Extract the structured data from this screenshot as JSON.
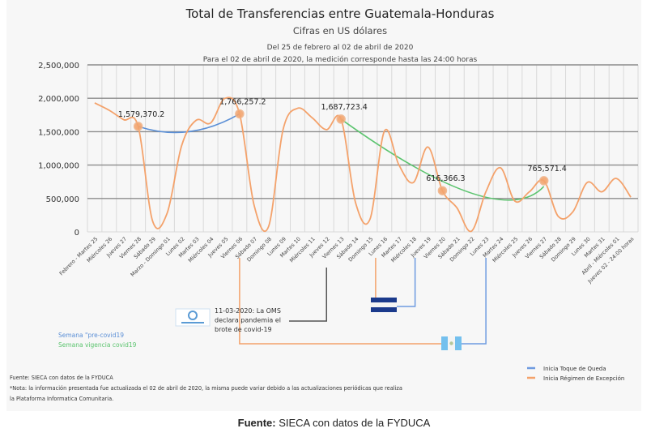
{
  "chart_data": {
    "type": "line",
    "title": "Total de Transferencias entre Guatemala-Honduras",
    "subtitle": "Cifras en US dólares",
    "subtitle2": "Del 25 de febrero al 02 de abril de 2020",
    "subtitle3": "Para el 02 de abril de 2020, la medición corresponde hasta las 24:00 horas",
    "xlabel": "",
    "ylabel": "",
    "ylim": [
      0,
      2500000
    ],
    "yticks": [
      "0",
      "500,000",
      "1,000,000",
      "1,500,000",
      "2,000,000",
      "2,500,000"
    ],
    "ytick_values": [
      0,
      500000,
      1000000,
      1500000,
      2000000,
      2500000
    ],
    "grid": true,
    "categories": [
      "Febrero - Martes 25",
      "Miércoles 26",
      "Jueves 27",
      "Viernes 28",
      "Sábado 29",
      "Marzo - Domingo 01",
      "Lunes 02",
      "Martes 03",
      "Miércoles 04",
      "Jueves 05",
      "Viernes 06",
      "Sábado 07",
      "Domingo 08",
      "Lunes 09",
      "Martes 10",
      "Miércoles 11",
      "Jueves 12",
      "Viernes 13",
      "Sábado 14",
      "Domingo 15",
      "Lunes 16",
      "Martes 17",
      "Miércoles 18",
      "Jueves 19",
      "Viernes 20",
      "Sábado 21",
      "Domingo 22",
      "Lunes 23",
      "Martes 24",
      "Miércoles 25",
      "Jueves 26",
      "Viernes 27",
      "Sábado 28",
      "Domingo 29",
      "Lunes 30",
      "Martes 31",
      "Abril - Miércoles 01",
      "Jueves 02 - 24:00 horas"
    ],
    "series": [
      {
        "color": "#f4a26b",
        "values": [
          1930000,
          1820000,
          1680000,
          1579370.2,
          160000,
          280000,
          1290000,
          1670000,
          1630000,
          2000000,
          1766257.2,
          400000,
          80000,
          1530000,
          1850000,
          1710000,
          1530000,
          1687723.4,
          440000,
          190000,
          1510000,
          1000000,
          740000,
          1270000,
          616366.3,
          360000,
          10000,
          600000,
          960000,
          460000,
          600000,
          765571.4,
          230000,
          300000,
          740000,
          600000,
          800000,
          520000
        ]
      }
    ],
    "markers": [
      {
        "index": 3,
        "label": "1,579,370.2"
      },
      {
        "index": 10,
        "label": "1,766,257.2"
      },
      {
        "index": 17,
        "label": "1,687,723.4"
      },
      {
        "index": 24,
        "label": "616,366.3"
      },
      {
        "index": 31,
        "label": "765,571.4"
      }
    ],
    "trendlines": [
      {
        "name": "Semana \"pre-covid19",
        "color": "#5b8fd6",
        "x_index": [
          3,
          6.5,
          10
        ],
        "values": [
          1579370.2,
          1500000,
          1766257.2
        ]
      },
      {
        "name": "Semana vigencia covid19",
        "color": "#5cc46f",
        "x_index": [
          17,
          26,
          31
        ],
        "values": [
          1687723.4,
          580000,
          680000
        ]
      }
    ],
    "legend": {
      "placement": "bottom-left",
      "items": [
        {
          "label": "Semana \"pre-covid19",
          "color": "#5b8fd6"
        },
        {
          "label": "Semana vigencia covid19",
          "color": "#5cc46f"
        }
      ]
    },
    "event_legend": {
      "placement": "bottom-right",
      "items": [
        {
          "label": "Inicia Toque de Queda",
          "color": "#6f9be0"
        },
        {
          "label": "Inicia Régimen de Excepción",
          "color": "#f4a26b"
        }
      ]
    },
    "annotations": {
      "oms_text": [
        "11-03-2020: La OMS",
        "declara pandemia el",
        "brote de covid-19"
      ],
      "oms_index": 16,
      "honduras_excepcion_index": 19.5,
      "honduras_toque_index": 22,
      "salvador_excepcion_index": 10,
      "salvador_toque_index": 27
    },
    "footnotes": [
      "Fuente: SIECA con datos de la FYDUCA",
      "*Nota: la información presentada fue actualizada el 02 de abril de 2020, la misma puede variar debido a las actualizaciones periódicas que realiza",
      "la Plataforma Informatica Comunitaria."
    ]
  },
  "source": {
    "label": "Fuente:",
    "text": " SIECA con datos de la FYDUCA"
  }
}
